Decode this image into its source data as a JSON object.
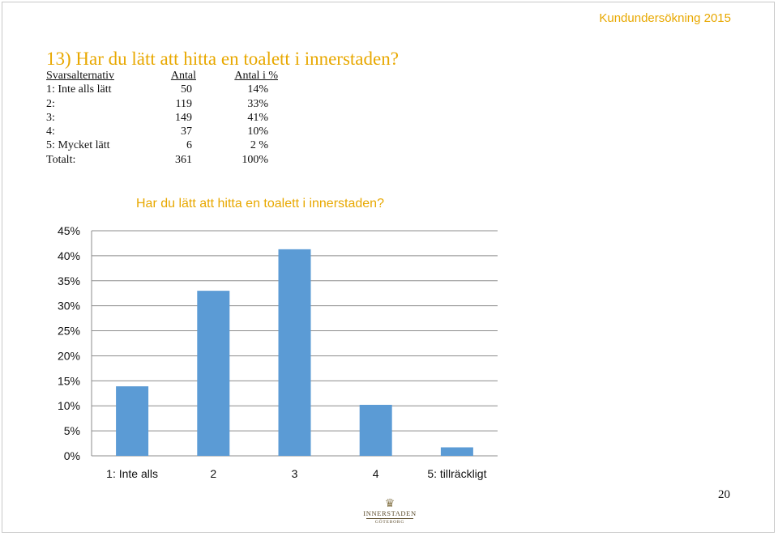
{
  "header": {
    "label": "Kundundersökning 2015"
  },
  "slide": {
    "title": "13) Har du lätt att hitta en toalett i innerstaden?"
  },
  "table": {
    "columns": [
      "Svarsalternativ",
      "Antal",
      "Antal i %"
    ],
    "rows": [
      [
        "1: Inte alls lätt",
        "50",
        "14%"
      ],
      [
        "2:",
        "119",
        "33%"
      ],
      [
        "3:",
        "149",
        "41%"
      ],
      [
        "4:",
        "37",
        "10%"
      ],
      [
        "5: Mycket lätt",
        "6",
        "2 %"
      ],
      [
        "Totalt:",
        "361",
        "100%"
      ]
    ]
  },
  "chart_data": {
    "type": "bar",
    "title": "Har du lätt att hitta en toalett i innerstaden?",
    "categories": [
      "1: Inte alls",
      "2",
      "3",
      "4",
      "5: tillräckligt"
    ],
    "values": [
      13.9,
      33,
      41.3,
      10.2,
      1.7
    ],
    "ylim": [
      0,
      45
    ],
    "yticks": [
      "0%",
      "5%",
      "10%",
      "15%",
      "20%",
      "25%",
      "30%",
      "35%",
      "40%",
      "45%"
    ],
    "grid": true,
    "bar_color": "#5b9bd5"
  },
  "footer": {
    "page_number": "20",
    "logo_name": "INNERSTADEN",
    "logo_city": "GÖTEBORG"
  }
}
